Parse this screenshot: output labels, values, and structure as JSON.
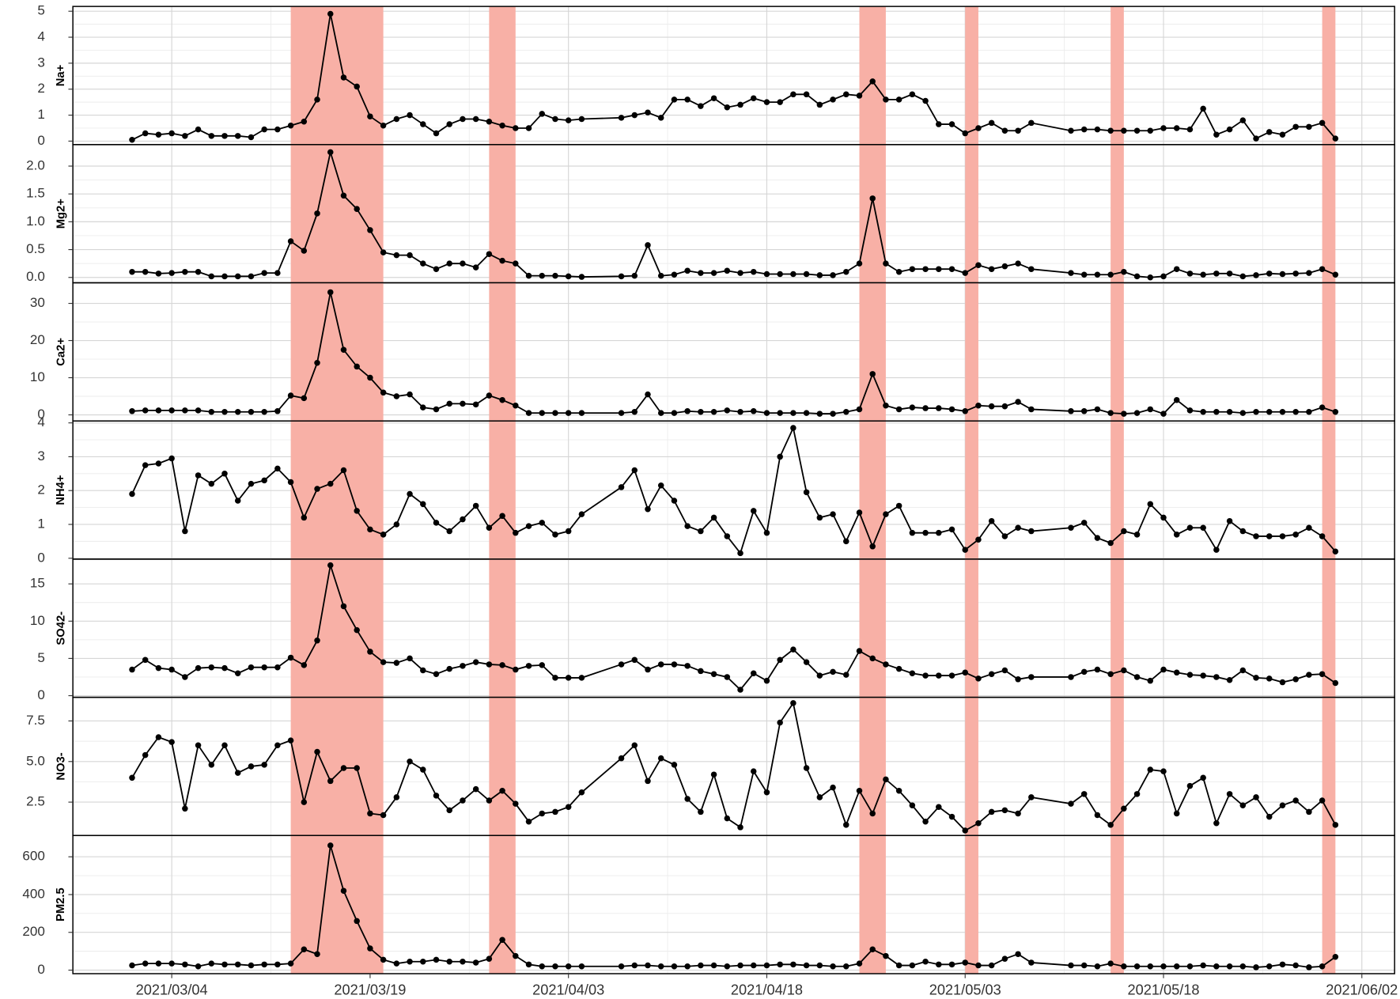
{
  "chart_data": {
    "type": "line",
    "x": [
      "2021/03/01",
      "2021/03/02",
      "2021/03/03",
      "2021/03/04",
      "2021/03/05",
      "2021/03/06",
      "2021/03/07",
      "2021/03/08",
      "2021/03/09",
      "2021/03/10",
      "2021/03/11",
      "2021/03/12",
      "2021/03/13",
      "2021/03/14",
      "2021/03/15",
      "2021/03/16",
      "2021/03/17",
      "2021/03/18",
      "2021/03/19",
      "2021/03/20",
      "2021/03/21",
      "2021/03/22",
      "2021/03/23",
      "2021/03/24",
      "2021/03/25",
      "2021/03/26",
      "2021/03/27",
      "2021/03/28",
      "2021/03/29",
      "2021/03/30",
      "2021/03/31",
      "2021/04/01",
      "2021/04/02",
      "2021/04/03",
      "2021/04/04",
      "2021/04/07",
      "2021/04/08",
      "2021/04/09",
      "2021/04/10",
      "2021/04/11",
      "2021/04/12",
      "2021/04/13",
      "2021/04/14",
      "2021/04/15",
      "2021/04/16",
      "2021/04/17",
      "2021/04/18",
      "2021/04/19",
      "2021/04/20",
      "2021/04/21",
      "2021/04/22",
      "2021/04/23",
      "2021/04/24",
      "2021/04/25",
      "2021/04/26",
      "2021/04/27",
      "2021/04/28",
      "2021/04/29",
      "2021/04/30",
      "2021/05/01",
      "2021/05/02",
      "2021/05/03",
      "2021/05/04",
      "2021/05/05",
      "2021/05/06",
      "2021/05/07",
      "2021/05/08",
      "2021/05/11",
      "2021/05/12",
      "2021/05/13",
      "2021/05/14",
      "2021/05/15",
      "2021/05/16",
      "2021/05/17",
      "2021/05/18",
      "2021/05/19",
      "2021/05/20",
      "2021/05/21",
      "2021/05/22",
      "2021/05/23",
      "2021/05/24",
      "2021/05/25",
      "2021/05/26",
      "2021/05/27",
      "2021/05/28",
      "2021/05/29",
      "2021/05/30",
      "2021/05/31"
    ],
    "xlim": [
      "2021/02/25",
      "2021/06/04"
    ],
    "xticks": [
      "2021/03/04",
      "2021/03/19",
      "2021/04/03",
      "2021/04/18",
      "2021/05/03",
      "2021/05/18",
      "2021/06/02"
    ],
    "highlights": [
      [
        "2021/03/13",
        "2021/03/20"
      ],
      [
        "2021/03/28",
        "2021/03/30"
      ],
      [
        "2021/04/25",
        "2021/04/27"
      ],
      [
        "2021/05/03",
        "2021/05/04"
      ],
      [
        "2021/05/14",
        "2021/05/15"
      ],
      [
        "2021/05/30",
        "2021/05/31"
      ]
    ],
    "highlight_color": "#f8b0a6",
    "grid": true,
    "series": [
      {
        "name": "Na+",
        "color": "#000000",
        "ylim": [
          -0.1,
          5.15
        ],
        "yticks": [
          0,
          1,
          2,
          3,
          4,
          5
        ],
        "values": [
          0.05,
          0.3,
          0.25,
          0.3,
          0.2,
          0.45,
          0.2,
          0.2,
          0.2,
          0.15,
          0.45,
          0.45,
          0.6,
          0.75,
          1.6,
          4.9,
          2.45,
          2.1,
          0.95,
          0.6,
          0.85,
          1.0,
          0.65,
          0.3,
          0.65,
          0.85,
          0.85,
          0.75,
          0.6,
          0.5,
          0.5,
          1.05,
          0.85,
          0.8,
          0.85,
          0.9,
          1.0,
          1.1,
          0.9,
          1.6,
          1.6,
          1.35,
          1.65,
          1.3,
          1.4,
          1.65,
          1.5,
          1.5,
          1.8,
          1.8,
          1.4,
          1.6,
          1.8,
          1.75,
          2.3,
          1.6,
          1.6,
          1.8,
          1.55,
          0.65,
          0.65,
          0.3,
          0.5,
          0.7,
          0.4,
          0.4,
          0.7,
          0.4,
          0.45,
          0.45,
          0.4,
          0.4,
          0.4,
          0.4,
          0.5,
          0.5,
          0.45,
          1.25,
          0.25,
          0.45,
          0.8,
          0.1,
          0.35,
          0.25,
          0.55,
          0.55,
          0.7,
          0.1
        ]
      },
      {
        "name": "Mg2+",
        "color": "#000000",
        "ylim": [
          -0.08,
          2.37
        ],
        "yticks": [
          {
            "value": 0,
            "label": "0.0"
          },
          {
            "value": 0.5,
            "label": "0.5"
          },
          {
            "value": 1,
            "label": "1.0"
          },
          {
            "value": 1.5,
            "label": "1.5"
          },
          {
            "value": 2,
            "label": "2.0"
          }
        ],
        "values": [
          0.1,
          0.1,
          0.07,
          0.08,
          0.1,
          0.1,
          0.02,
          0.02,
          0.02,
          0.02,
          0.08,
          0.08,
          0.65,
          0.48,
          1.15,
          2.25,
          1.47,
          1.23,
          0.85,
          0.45,
          0.4,
          0.4,
          0.25,
          0.15,
          0.25,
          0.25,
          0.18,
          0.42,
          0.3,
          0.25,
          0.03,
          0.03,
          0.03,
          0.02,
          0.01,
          0.02,
          0.03,
          0.58,
          0.03,
          0.05,
          0.12,
          0.08,
          0.08,
          0.12,
          0.08,
          0.1,
          0.06,
          0.06,
          0.06,
          0.06,
          0.04,
          0.04,
          0.1,
          0.25,
          1.42,
          0.25,
          0.1,
          0.15,
          0.15,
          0.15,
          0.15,
          0.08,
          0.22,
          0.15,
          0.2,
          0.25,
          0.15,
          0.08,
          0.05,
          0.05,
          0.05,
          0.1,
          0.02,
          0.0,
          0.02,
          0.15,
          0.07,
          0.05,
          0.07,
          0.07,
          0.02,
          0.04,
          0.07,
          0.06,
          0.07,
          0.08,
          0.15,
          0.05
        ]
      },
      {
        "name": "Ca2+",
        "color": "#000000",
        "ylim": [
          -1.4,
          35.3
        ],
        "yticks": [
          0,
          10,
          20,
          30
        ],
        "values": [
          1,
          1.2,
          1.2,
          1.2,
          1.2,
          1.2,
          0.8,
          0.8,
          0.8,
          0.8,
          0.8,
          1,
          5.2,
          4.5,
          14,
          33,
          17.5,
          13,
          10,
          6,
          5,
          5.5,
          2,
          1.5,
          3,
          3,
          2.8,
          5.2,
          4,
          2.5,
          0.5,
          0.5,
          0.5,
          0.5,
          0.5,
          0.5,
          0.8,
          5.5,
          0.5,
          0.5,
          1,
          0.8,
          0.8,
          1.2,
          0.8,
          1,
          0.5,
          0.5,
          0.5,
          0.5,
          0.3,
          0.3,
          0.8,
          1.5,
          11,
          2.5,
          1.5,
          2,
          1.8,
          1.8,
          1.5,
          1,
          2.5,
          2.3,
          2.3,
          3.5,
          1.5,
          1,
          1,
          1.5,
          0.5,
          0.3,
          0.5,
          1.5,
          0.3,
          4,
          1.2,
          0.8,
          0.8,
          0.8,
          0.5,
          0.8,
          0.8,
          0.8,
          0.8,
          0.8,
          2,
          0.8
        ]
      },
      {
        "name": "NH4+",
        "color": "#000000",
        "ylim": [
          0,
          4.03
        ],
        "yticks": [
          0,
          1,
          2,
          3,
          4
        ],
        "values": [
          1.9,
          2.75,
          2.8,
          2.95,
          0.8,
          2.45,
          2.2,
          2.5,
          1.7,
          2.2,
          2.3,
          2.65,
          2.25,
          1.2,
          2.05,
          2.2,
          2.6,
          1.4,
          0.85,
          0.7,
          1.0,
          1.9,
          1.6,
          1.05,
          0.8,
          1.15,
          1.55,
          0.9,
          1.25,
          0.75,
          0.95,
          1.05,
          0.7,
          0.8,
          1.3,
          2.1,
          2.6,
          1.45,
          2.15,
          1.7,
          0.95,
          0.8,
          1.2,
          0.65,
          0.15,
          1.4,
          0.75,
          3.0,
          3.85,
          1.95,
          1.2,
          1.3,
          0.5,
          1.35,
          0.35,
          1.3,
          1.55,
          0.75,
          0.75,
          0.75,
          0.85,
          0.25,
          0.55,
          1.1,
          0.65,
          0.9,
          0.8,
          0.9,
          1.05,
          0.6,
          0.45,
          0.8,
          0.7,
          1.6,
          1.2,
          0.7,
          0.9,
          0.9,
          0.25,
          1.1,
          0.8,
          0.65,
          0.65,
          0.65,
          0.7,
          0.9,
          0.65,
          0.2
        ]
      },
      {
        "name": "SO42-",
        "color": "#000000",
        "ylim": [
          -0.1,
          18.2
        ],
        "yticks": [
          0,
          5,
          10,
          15
        ],
        "values": [
          3.5,
          4.8,
          3.7,
          3.5,
          2.5,
          3.7,
          3.8,
          3.7,
          3.0,
          3.8,
          3.8,
          3.8,
          5.1,
          4.1,
          7.4,
          17.5,
          12,
          8.8,
          5.9,
          4.5,
          4.4,
          5.0,
          3.4,
          2.9,
          3.6,
          4.0,
          4.5,
          4.2,
          4.1,
          3.5,
          4.0,
          4.1,
          2.4,
          2.4,
          2.4,
          4.2,
          4.8,
          3.5,
          4.2,
          4.2,
          4.0,
          3.3,
          2.9,
          2.5,
          0.8,
          3.0,
          2.0,
          4.8,
          6.2,
          4.5,
          2.7,
          3.2,
          2.8,
          6.0,
          5.0,
          4.2,
          3.6,
          3.0,
          2.7,
          2.7,
          2.7,
          3.1,
          2.3,
          2.9,
          3.4,
          2.2,
          2.5,
          2.5,
          3.2,
          3.5,
          2.9,
          3.4,
          2.5,
          2.0,
          3.5,
          3.1,
          2.8,
          2.7,
          2.5,
          2.1,
          3.4,
          2.4,
          2.3,
          1.8,
          2.2,
          2.8,
          2.9,
          1.7
        ]
      },
      {
        "name": "NO3-",
        "color": "#000000",
        "ylim": [
          0.5,
          8.9
        ],
        "yticks": [
          2.5,
          {
            "value": 5,
            "label": "5.0"
          },
          7.5
        ],
        "values": [
          4.0,
          5.4,
          6.5,
          6.2,
          2.1,
          6.0,
          4.8,
          6.0,
          4.3,
          4.7,
          4.8,
          6.0,
          6.3,
          2.5,
          5.6,
          3.8,
          4.6,
          4.6,
          1.8,
          1.7,
          2.8,
          5.0,
          4.5,
          2.9,
          2.0,
          2.6,
          3.3,
          2.6,
          3.2,
          2.4,
          1.3,
          1.8,
          1.9,
          2.2,
          3.1,
          5.2,
          6.0,
          3.8,
          5.2,
          4.8,
          2.7,
          1.9,
          4.2,
          1.5,
          0.95,
          4.4,
          3.1,
          7.4,
          8.6,
          4.6,
          2.8,
          3.4,
          1.1,
          3.2,
          1.8,
          3.9,
          3.2,
          2.3,
          1.3,
          2.2,
          1.6,
          0.75,
          1.2,
          1.9,
          2.0,
          1.8,
          2.8,
          2.4,
          3.0,
          1.7,
          1.1,
          2.1,
          3.0,
          4.5,
          4.4,
          1.8,
          3.5,
          4.0,
          1.2,
          3.0,
          2.3,
          2.8,
          1.6,
          2.3,
          2.6,
          1.9,
          2.6,
          1.1
        ]
      },
      {
        "name": "PM2.5",
        "color": "#000000",
        "ylim": [
          -14,
          708
        ],
        "yticks": [
          0,
          200,
          400,
          600
        ],
        "values": [
          25,
          35,
          35,
          35,
          30,
          20,
          35,
          30,
          30,
          25,
          30,
          30,
          35,
          110,
          85,
          660,
          420,
          260,
          115,
          55,
          35,
          45,
          45,
          55,
          45,
          45,
          40,
          60,
          160,
          75,
          30,
          20,
          20,
          20,
          20,
          20,
          25,
          25,
          20,
          20,
          20,
          25,
          25,
          20,
          25,
          25,
          25,
          30,
          30,
          25,
          25,
          20,
          20,
          35,
          110,
          75,
          25,
          25,
          45,
          30,
          30,
          40,
          25,
          25,
          60,
          85,
          40,
          25,
          25,
          20,
          35,
          20,
          20,
          20,
          20,
          20,
          20,
          25,
          20,
          20,
          20,
          15,
          20,
          30,
          25,
          15,
          20,
          70
        ]
      }
    ]
  }
}
